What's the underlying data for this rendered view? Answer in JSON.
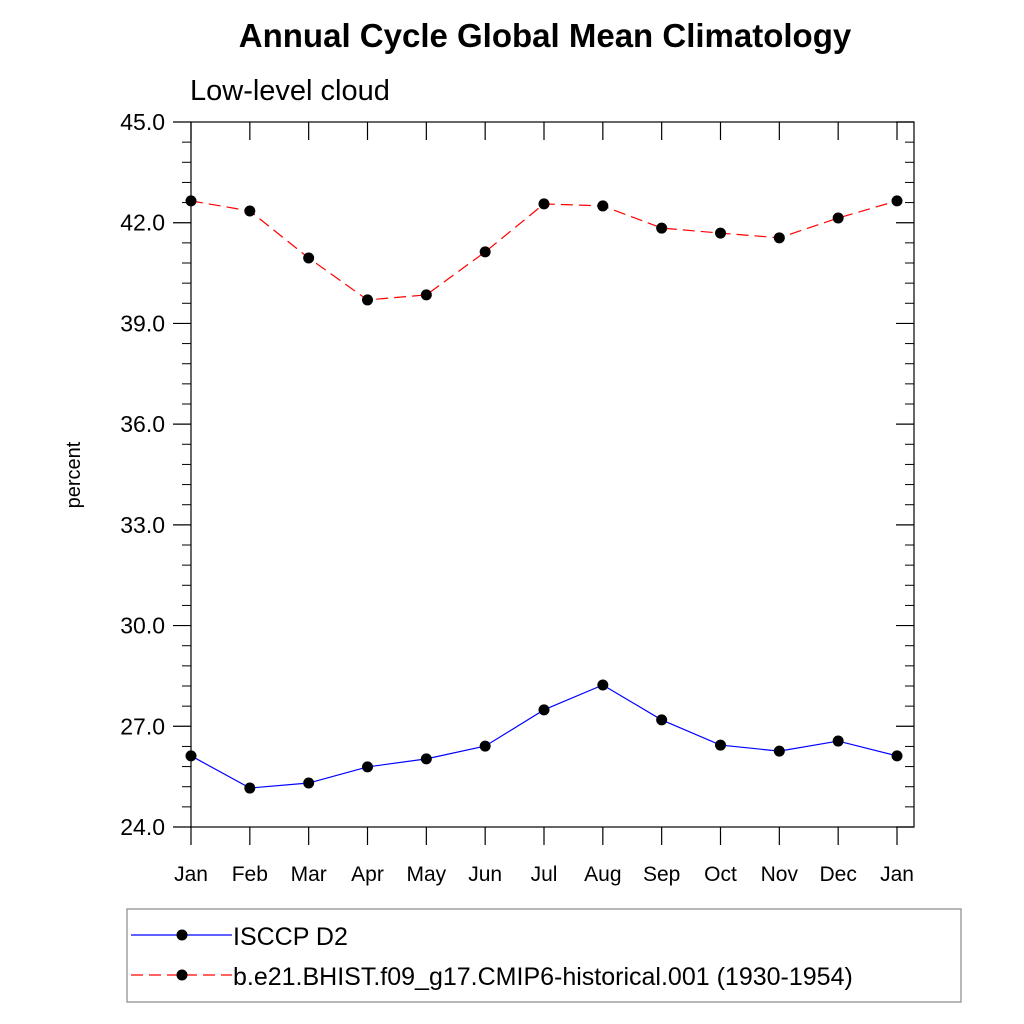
{
  "chart_data": {
    "type": "line",
    "title": "Annual Cycle Global Mean Climatology",
    "subtitle": "Low-level cloud",
    "xlabel": "",
    "ylabel": "percent",
    "ylim": [
      24.0,
      45.0
    ],
    "yticks": [
      "24.0",
      "27.0",
      "30.0",
      "33.0",
      "36.0",
      "39.0",
      "42.0",
      "45.0"
    ],
    "categories": [
      "Jan",
      "Feb",
      "Mar",
      "Apr",
      "May",
      "Jun",
      "Jul",
      "Aug",
      "Sep",
      "Oct",
      "Nov",
      "Dec",
      "Jan"
    ],
    "legend_position": "bottom",
    "series": [
      {
        "name": "ISCCP D2",
        "color": "#0000ff",
        "dash": "solid",
        "values": [
          26.12,
          25.16,
          25.31,
          25.79,
          26.03,
          26.41,
          27.49,
          28.23,
          27.19,
          26.44,
          26.26,
          26.56,
          26.12
        ]
      },
      {
        "name": "b.e21.BHIST.f09_g17.CMIP6-historical.001 (1930-1954)",
        "color": "#ff0000",
        "dash": "dashed",
        "values": [
          42.65,
          42.35,
          40.95,
          39.7,
          39.85,
          41.13,
          42.56,
          42.5,
          41.84,
          41.69,
          41.55,
          42.14,
          42.65
        ]
      }
    ]
  }
}
